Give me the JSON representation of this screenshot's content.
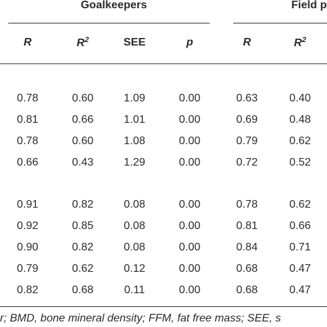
{
  "header": {
    "group1": "Goalkeepers",
    "group2": "Field p"
  },
  "columns": [
    {
      "label": "R"
    },
    {
      "label": "R",
      "sup": "2"
    },
    {
      "label": "SEE"
    },
    {
      "label": "p"
    },
    {
      "label": "R"
    },
    {
      "label": "R",
      "sup": "2"
    }
  ],
  "sections": [
    {
      "rows": [
        [
          "0.78",
          "0.60",
          "1.09",
          "0.00",
          "0.63",
          "0.40"
        ],
        [
          "0.81",
          "0.66",
          "1.01",
          "0.00",
          "0.69",
          "0.48"
        ],
        [
          "0.78",
          "0.60",
          "1.08",
          "0.00",
          "0.79",
          "0.62"
        ],
        [
          "0.66",
          "0.43",
          "1.29",
          "0.00",
          "0.72",
          "0.52"
        ]
      ]
    },
    {
      "rows": [
        [
          "0.91",
          "0.82",
          "0.08",
          "0.00",
          "0.78",
          "0.62"
        ],
        [
          "0.92",
          "0.85",
          "0.08",
          "0.00",
          "0.81",
          "0.66"
        ],
        [
          "0.90",
          "0.82",
          "0.08",
          "0.00",
          "0.84",
          "0.71"
        ],
        [
          "0.79",
          "0.62",
          "0.12",
          "0.00",
          "0.68",
          "0.47"
        ],
        [
          "0.82",
          "0.68",
          "0.11",
          "0.00",
          "0.68",
          "0.47"
        ]
      ]
    }
  ],
  "footnote": "r; BMD, bone mineral density; FFM, fat free mass; SEE, s"
}
